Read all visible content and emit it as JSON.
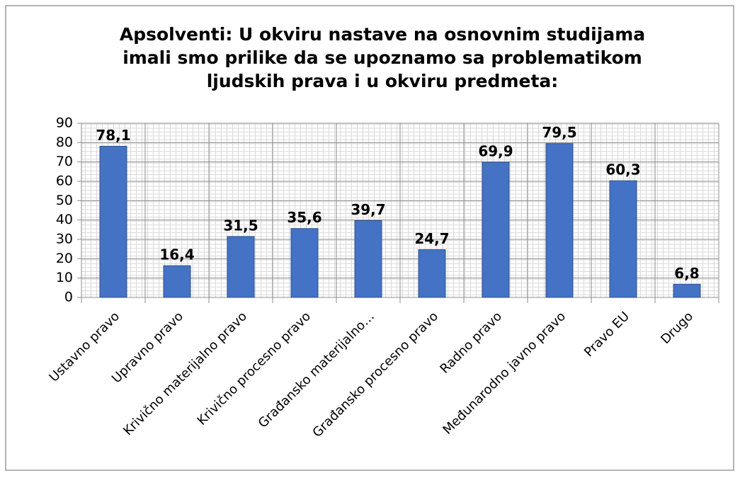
{
  "chart_data": {
    "type": "bar",
    "title": [
      "Apsolventi: U okviru nastave na osnovnim studijama",
      "imali smo prilike da se upoznamo sa problematikom",
      "ljudskih prava i u okviru predmeta:"
    ],
    "categories": [
      "Ustavno pravo",
      "Upravno pravo",
      "Krivično materijalno pravo",
      "Krivično procesno pravo",
      "Građansko materijalno…",
      "Građansko procesno pravo",
      "Radno pravo",
      "Međunarodno javno pravo",
      "Pravo EU",
      "Drugo"
    ],
    "values": [
      78.1,
      16.4,
      31.5,
      35.6,
      39.7,
      24.7,
      69.9,
      79.5,
      60.3,
      6.8
    ],
    "value_labels": [
      "78,1",
      "16,4",
      "31,5",
      "35,6",
      "39,7",
      "24,7",
      "69,9",
      "79,5",
      "60,3",
      "6,8"
    ],
    "color": "#4472c4",
    "ylim": [
      0,
      90
    ],
    "yticks": [
      0,
      10,
      20,
      30,
      40,
      50,
      60,
      70,
      80,
      90
    ],
    "grid": true
  }
}
